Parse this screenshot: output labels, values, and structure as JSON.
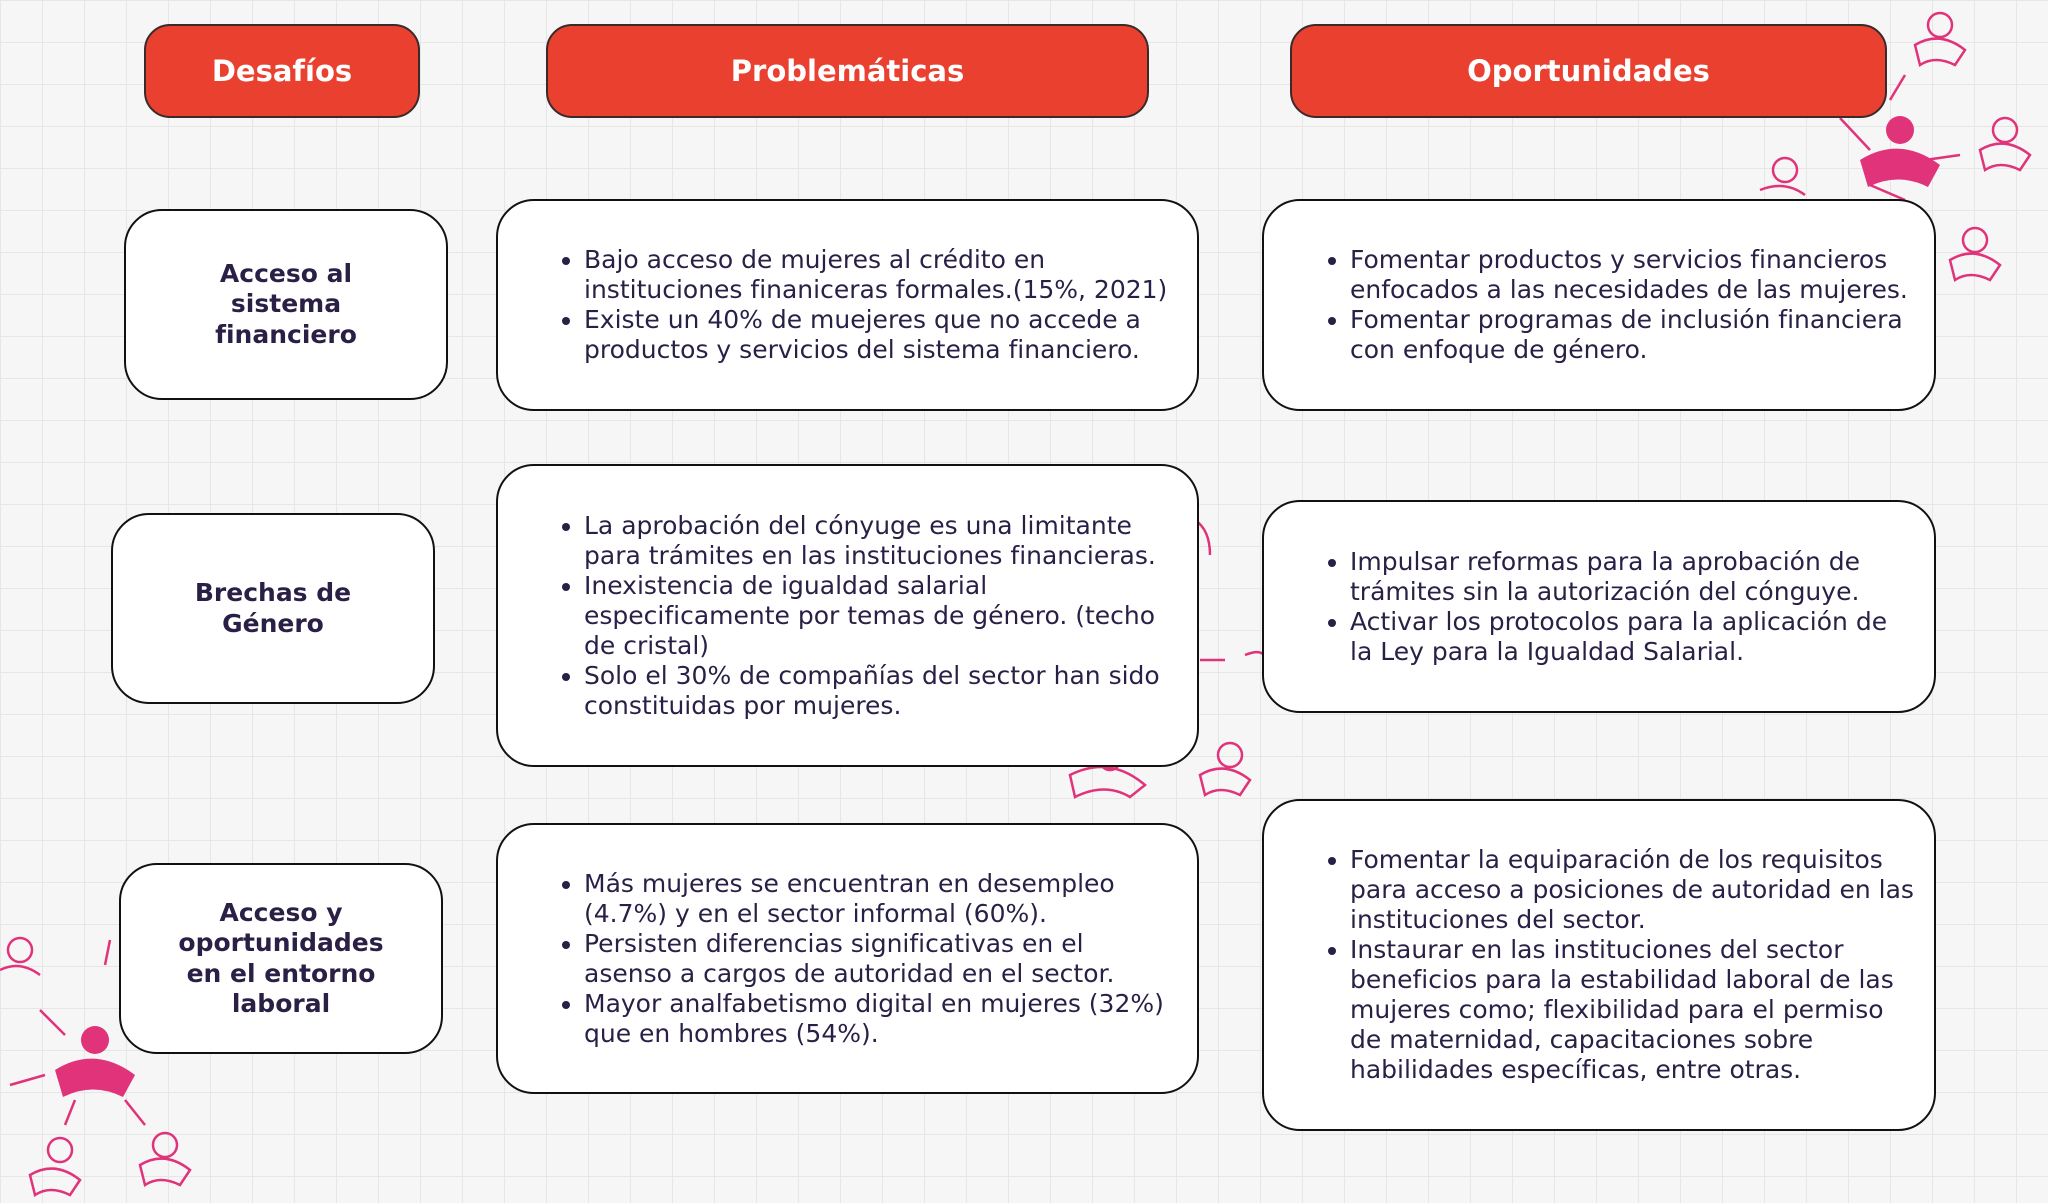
{
  "headers": [
    "Desafíos",
    "Problemáticas",
    "Oportunidades"
  ],
  "rows": [
    {
      "challenge": "Acceso al sistema financiero",
      "problems": [
        "Bajo acceso de mujeres al crédito en instituciones finaniceras formales.(15%, 2021)",
        "Existe un 40% de muejeres que no accede a productos y servicios del sistema financiero."
      ],
      "opportunities": [
        "Fomentar productos y servicios financieros enfocados a las necesidades de las mujeres.",
        "Fomentar programas de inclusión financiera con enfoque de género."
      ]
    },
    {
      "challenge": "Brechas de Género",
      "problems": [
        "La aprobación del cónyuge es una limitante para trámites en las instituciones financieras.",
        "Inexistencia de igualdad salarial especificamente por temas de género. (techo de cristal)",
        "Solo el 30% de compañías del sector han sido constituidas por mujeres."
      ],
      "opportunities": [
        "Impulsar reformas para la aprobación de trámites sin la autorización del cónguye.",
        "Activar los protocolos para la aplicación de la Ley para la Igualdad Salarial."
      ]
    },
    {
      "challenge": "Acceso y oportunidades en el entorno laboral",
      "problems": [
        "Más mujeres se encuentran en desempleo (4.7%) y en el sector informal (60%).",
        "Persisten diferencias significativas en el asenso a cargos de autoridad en el sector.",
        "Mayor analfabetismo digital en mujeres (32%) que en hombres (54%)."
      ],
      "opportunities": [
        "Fomentar la equiparación de los requisitos para acceso a posiciones de autoridad en las instituciones del sector.",
        "Instaurar en las instituciones del sector beneficios para la estabilidad laboral de las mujeres como; flexibilidad para el permiso de maternidad, capacitaciones sobre habilidades específicas, entre otras."
      ]
    }
  ]
}
